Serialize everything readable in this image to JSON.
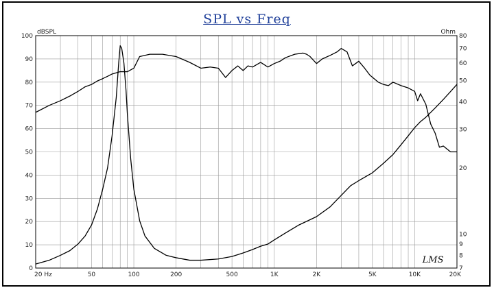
{
  "chart_data": {
    "type": "line",
    "title": "SPL vs Freq",
    "x_scale": "log",
    "xlim": [
      20,
      20000
    ],
    "x_ticks": [
      {
        "value": 20,
        "label": "20 Hz"
      },
      {
        "value": 50,
        "label": "50"
      },
      {
        "value": 100,
        "label": "100"
      },
      {
        "value": 200,
        "label": "200"
      },
      {
        "value": 500,
        "label": "500"
      },
      {
        "value": 1000,
        "label": "1K"
      },
      {
        "value": 2000,
        "label": "2K"
      },
      {
        "value": 5000,
        "label": "5K"
      },
      {
        "value": 10000,
        "label": "10K"
      },
      {
        "value": 20000,
        "label": "20K"
      }
    ],
    "y_left": {
      "unit": "dBSPL",
      "lim": [
        0,
        100
      ],
      "ticks": [
        0,
        10,
        20,
        30,
        40,
        50,
        60,
        70,
        80,
        90,
        100
      ]
    },
    "y_right": {
      "unit": "Ohm",
      "scale": "log",
      "lim": [
        7,
        80
      ],
      "ticks": [
        7,
        8,
        9,
        10,
        20,
        30,
        40,
        50,
        60,
        70,
        80
      ]
    },
    "grid": true,
    "annotation": "LMS",
    "series": [
      {
        "axis": "left",
        "color": "#000000",
        "x": [
          20,
          25,
          30,
          35,
          40,
          45,
          50,
          55,
          60,
          65,
          70,
          80,
          90,
          100,
          110,
          130,
          160,
          200,
          250,
          300,
          350,
          400,
          450,
          500,
          550,
          600,
          650,
          700,
          800,
          900,
          1000,
          1100,
          1200,
          1400,
          1600,
          1700,
          1800,
          2000,
          2200,
          2500,
          2800,
          3000,
          3300,
          3600,
          4000,
          4400,
          4800,
          5500,
          6000,
          6500,
          7000,
          8000,
          9000,
          10000,
          10500,
          11000,
          12000,
          13000,
          14000,
          15000,
          16000,
          18000,
          20000
        ],
        "y": [
          67,
          70,
          72,
          74,
          76,
          78,
          79,
          80.5,
          81.5,
          82.5,
          83.5,
          84.5,
          84.5,
          86,
          91,
          92,
          92,
          91,
          88.5,
          86,
          86.5,
          86,
          82,
          85,
          87,
          85,
          87,
          86.5,
          88.5,
          86.5,
          88,
          89,
          90.5,
          92,
          92.5,
          92,
          91,
          88,
          90,
          91.5,
          93,
          94.5,
          93,
          87,
          89,
          86,
          83,
          80,
          79,
          78.5,
          80,
          78.5,
          77.5,
          76,
          72,
          75,
          70.5,
          62,
          58,
          52,
          52.5,
          50,
          50
        ]
      },
      {
        "axis": "right",
        "color": "#000000",
        "x": [
          20,
          25,
          30,
          35,
          40,
          45,
          50,
          55,
          60,
          65,
          70,
          75,
          78,
          80,
          82,
          85,
          88,
          90,
          95,
          100,
          110,
          120,
          140,
          170,
          200,
          250,
          300,
          400,
          500,
          600,
          700,
          800,
          900,
          1000,
          1200,
          1500,
          2000,
          2500,
          3000,
          3500,
          4000,
          5000,
          6000,
          7000,
          8000,
          9000,
          10000,
          11000,
          12000,
          14000,
          16000,
          18000,
          20000
        ],
        "y": [
          7.3,
          7.6,
          8.0,
          8.4,
          9.0,
          9.8,
          11.0,
          13.0,
          16.0,
          20.0,
          28.0,
          42.0,
          60.0,
          72.0,
          70.0,
          60.0,
          45.0,
          35.0,
          22.0,
          16.0,
          11.5,
          9.8,
          8.6,
          8.0,
          7.8,
          7.6,
          7.6,
          7.7,
          7.9,
          8.2,
          8.5,
          8.8,
          9.0,
          9.4,
          10.1,
          11.0,
          12.0,
          13.3,
          15.0,
          16.6,
          17.5,
          19.0,
          21.0,
          23.0,
          25.5,
          28.0,
          30.5,
          32.5,
          34.0,
          37.5,
          41.0,
          44.5,
          48.0
        ]
      }
    ]
  }
}
